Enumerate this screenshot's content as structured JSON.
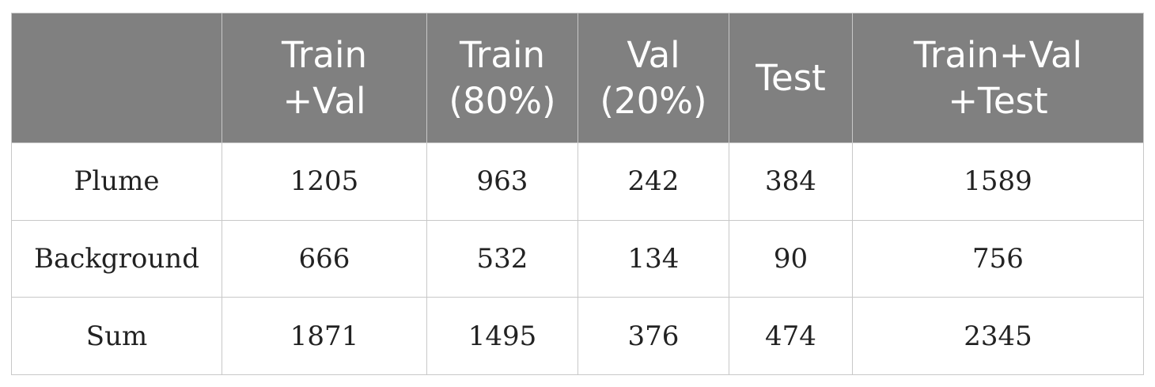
{
  "table": {
    "headers": [
      {
        "lines": [
          ""
        ]
      },
      {
        "lines": [
          "Train",
          "+Val"
        ]
      },
      {
        "lines": [
          "Train",
          "(80%)"
        ]
      },
      {
        "lines": [
          "Val",
          "(20%)"
        ]
      },
      {
        "lines": [
          "Test"
        ]
      },
      {
        "lines": [
          "Train+Val",
          "+Test"
        ]
      }
    ],
    "rows": [
      {
        "cells": [
          "Plume",
          "1205",
          "963",
          "242",
          "384",
          "1589"
        ]
      },
      {
        "cells": [
          "Background",
          "666",
          "532",
          "134",
          "90",
          "756"
        ]
      },
      {
        "cells": [
          "Sum",
          "1871",
          "1495",
          "376",
          "474",
          "2345"
        ]
      }
    ]
  }
}
